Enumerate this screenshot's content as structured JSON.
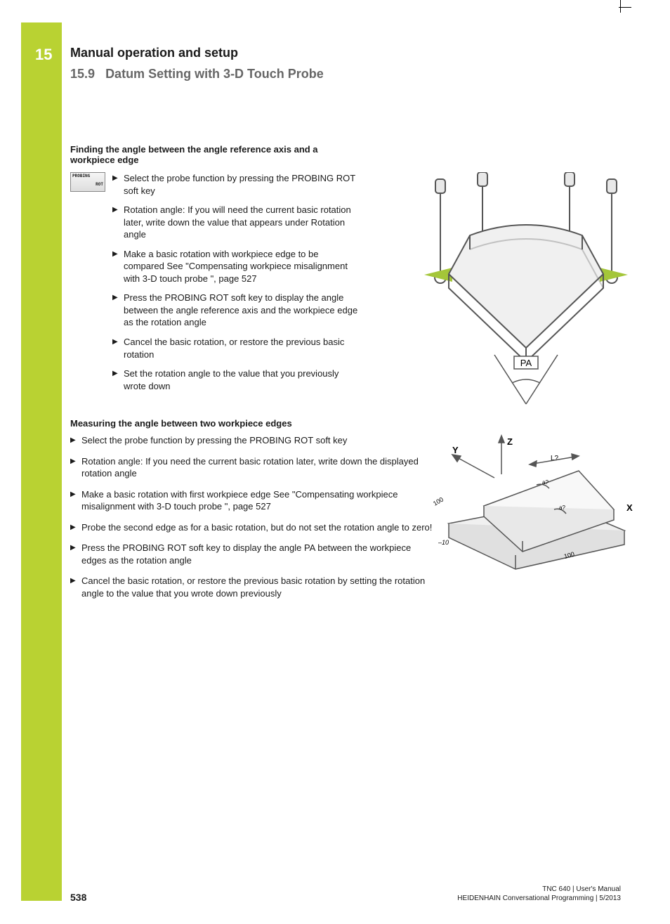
{
  "chapter_num": "15",
  "chapter_title": "Manual operation and setup",
  "section_num": "15.9",
  "section_title": "Datum Setting with 3-D Touch Probe",
  "softkey": {
    "line1": "PROBING",
    "line2": "ROT"
  },
  "sub1": "Finding the angle between the angle reference axis and a workpiece edge",
  "list1": [
    "Select the probe function by pressing the PROBING ROT soft key",
    "Rotation angle: If you will need the current basic rotation later, write down the value that appears under Rotation angle",
    "Make a basic rotation with workpiece edge to be compared See \"Compensating workpiece misalignment with 3-D touch probe \", page 527",
    "Press the PROBING ROT soft key to display the angle between the angle reference axis and the workpiece edge as the rotation angle",
    "Cancel the basic rotation, or restore the previous basic rotation",
    "Set the rotation angle to the value that you previously wrote down"
  ],
  "sub2": "Measuring the angle between two workpiece edges",
  "list2": [
    "Select the probe function by pressing the PROBING ROT soft key",
    "Rotation angle: If you need the current basic rotation later, write down the displayed rotation angle",
    "Make a basic rotation with first workpiece edge See \"Compensating workpiece misalignment with 3-D touch probe \", page 527",
    "Probe the second edge as for a basic rotation, but do not set the rotation angle to zero!",
    "Press the PROBING ROT soft key to display the angle PA between the workpiece edges as the rotation angle",
    "Cancel the basic rotation, or restore the previous basic rotation by setting the rotation angle to the value that you wrote down previously"
  ],
  "fig1": {
    "label_pa": "PA",
    "colors": {
      "accent": "#a4c639",
      "outline": "#555",
      "body": "#e8e8e8"
    }
  },
  "fig2": {
    "axis_z": "Z",
    "axis_y": "Y",
    "axis_x": "X",
    "dim_l": "L?",
    "dim_a1": "a?",
    "dim_a2": "a?",
    "dim_100a": "100",
    "dim_100b": "100",
    "dim_m10": "–10",
    "colors": {
      "outline": "#555",
      "face": "#e8e8e8",
      "top": "#f2f2f2"
    }
  },
  "page_num": "538",
  "footer1": "TNC 640 | User's Manual",
  "footer2": "HEIDENHAIN Conversational Programming | 5/2013"
}
